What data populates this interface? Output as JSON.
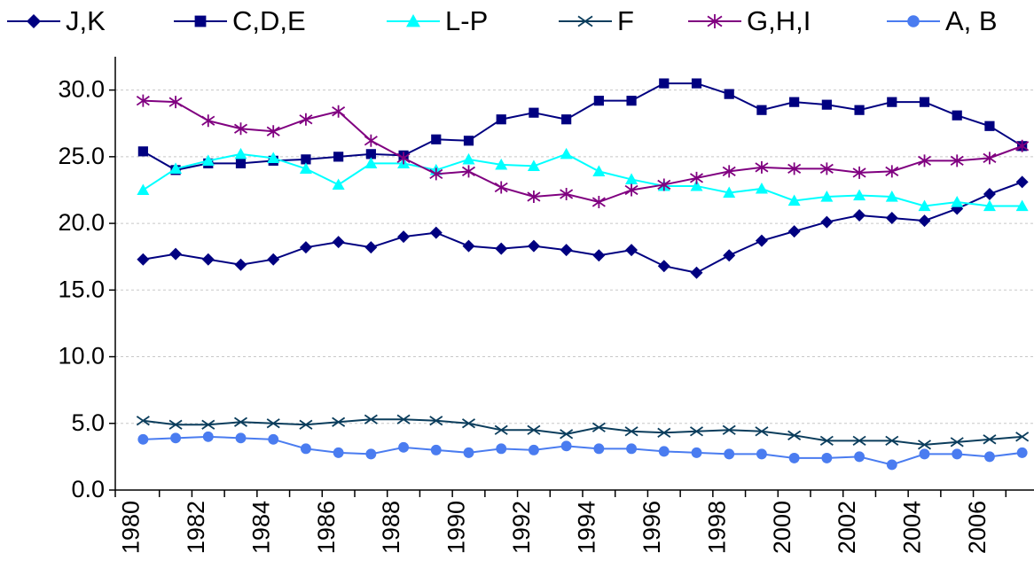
{
  "chart_data": {
    "type": "line",
    "categories": [
      "1980",
      null,
      "1982",
      null,
      "1984",
      null,
      "1986",
      null,
      "1988",
      null,
      "1990",
      null,
      "1992",
      null,
      "1994",
      null,
      "1996",
      null,
      "1998",
      null,
      "2000",
      null,
      "2002",
      null,
      "2004",
      null,
      "2006",
      null
    ],
    "ylim": [
      0,
      32.5
    ],
    "yticks": [
      {
        "value": 0,
        "label": "0.0"
      },
      {
        "value": 5,
        "label": "5.0"
      },
      {
        "value": 10,
        "label": "10.0"
      },
      {
        "value": 15,
        "label": "15.0"
      },
      {
        "value": 20,
        "label": "20.0"
      },
      {
        "value": 25,
        "label": "25.0"
      },
      {
        "value": 30,
        "label": "30.0"
      }
    ],
    "grid": true,
    "legend": "top",
    "series": [
      {
        "name": "J,K",
        "color": "#000080",
        "marker": "diamond",
        "values": [
          17.3,
          17.7,
          17.3,
          16.9,
          17.3,
          18.2,
          18.6,
          18.2,
          19.0,
          19.3,
          18.3,
          18.1,
          18.3,
          18.0,
          17.6,
          18.0,
          16.8,
          16.3,
          17.6,
          18.7,
          19.4,
          20.1,
          20.6,
          20.4,
          20.2,
          21.1,
          22.2,
          23.1
        ]
      },
      {
        "name": "C,D,E",
        "color": "#000080",
        "marker": "square",
        "values": [
          25.4,
          24.0,
          24.5,
          24.5,
          24.7,
          24.8,
          25.0,
          25.2,
          25.1,
          26.3,
          26.2,
          27.8,
          28.3,
          27.8,
          29.2,
          29.2,
          30.5,
          30.5,
          29.7,
          28.5,
          29.1,
          28.9,
          28.5,
          29.1,
          29.1,
          28.1,
          27.3,
          25.8
        ]
      },
      {
        "name": "L-P",
        "color": "#00ffff",
        "marker": "triangle",
        "values": [
          22.5,
          24.1,
          24.7,
          25.2,
          24.9,
          24.1,
          22.9,
          24.5,
          24.5,
          24.0,
          24.8,
          24.4,
          24.3,
          25.2,
          23.9,
          23.3,
          22.8,
          22.8,
          22.3,
          22.6,
          21.7,
          22.0,
          22.1,
          22.0,
          21.3,
          21.6,
          21.3,
          21.3
        ]
      },
      {
        "name": "F",
        "color": "#0b3d5c",
        "marker": "x",
        "values": [
          5.2,
          4.9,
          4.9,
          5.1,
          5.0,
          4.9,
          5.1,
          5.3,
          5.3,
          5.2,
          5.0,
          4.5,
          4.5,
          4.2,
          4.7,
          4.4,
          4.3,
          4.4,
          4.5,
          4.4,
          4.1,
          3.7,
          3.7,
          3.7,
          3.4,
          3.6,
          3.8,
          4.0
        ]
      },
      {
        "name": "G,H,I",
        "color": "#800080",
        "marker": "star",
        "values": [
          29.2,
          29.1,
          27.7,
          27.1,
          26.9,
          27.8,
          28.4,
          26.2,
          24.9,
          23.7,
          23.9,
          22.7,
          22.0,
          22.2,
          21.6,
          22.5,
          22.9,
          23.4,
          23.9,
          24.2,
          24.1,
          24.1,
          23.8,
          23.9,
          24.7,
          24.7,
          24.9,
          25.8
        ]
      },
      {
        "name": "A, B",
        "color": "#4a7cf0",
        "marker": "circle",
        "values": [
          3.8,
          3.9,
          4.0,
          3.9,
          3.8,
          3.1,
          2.8,
          2.7,
          3.2,
          3.0,
          2.8,
          3.1,
          3.0,
          3.3,
          3.1,
          3.1,
          2.9,
          2.8,
          2.7,
          2.7,
          2.4,
          2.4,
          2.5,
          1.9,
          2.7,
          2.7,
          2.5,
          2.8
        ]
      }
    ]
  }
}
